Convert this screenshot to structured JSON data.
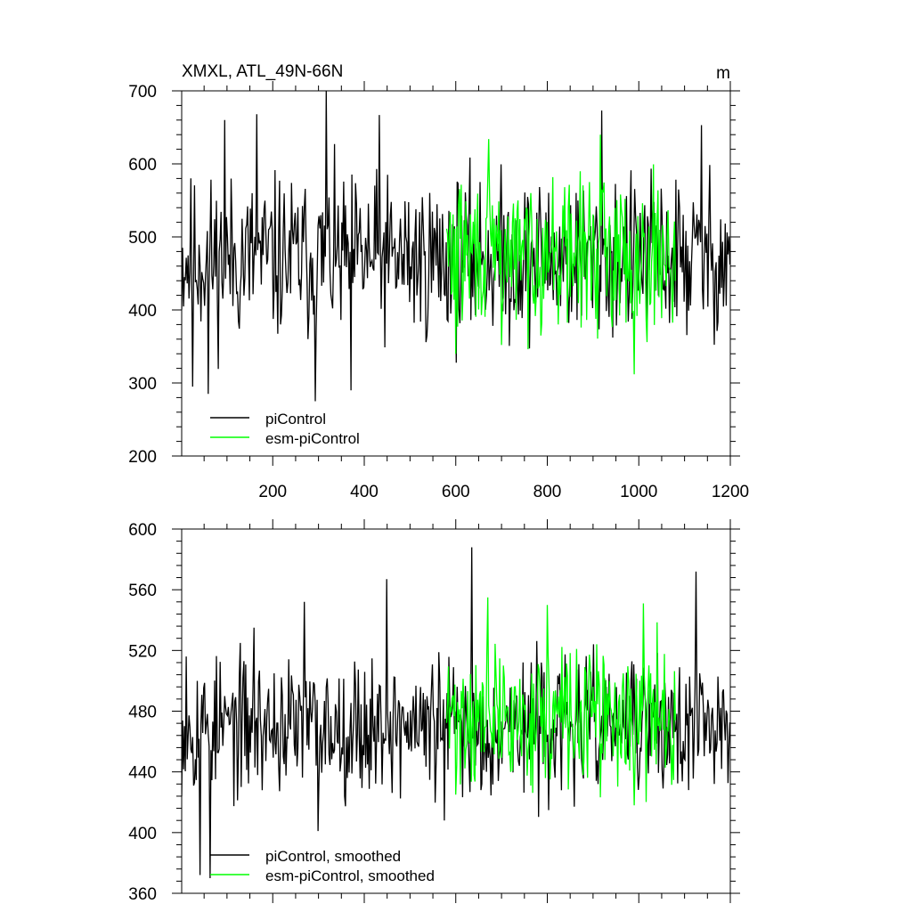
{
  "chart_data": [
    {
      "type": "line",
      "title": "XMXL, ATL_49N-66N",
      "units": "m",
      "xlim": [
        1,
        1200
      ],
      "ylim": [
        200,
        700
      ],
      "xticks": [
        200,
        400,
        600,
        800,
        1000,
        1200
      ],
      "yticks": [
        200,
        300,
        400,
        500,
        600,
        700
      ],
      "legend_position": "bottom-left",
      "series": [
        {
          "name": "piControl",
          "color": "#000000",
          "x_range": [
            1,
            1200
          ],
          "mean": 470,
          "noise": 55,
          "seed": 11,
          "peaks": [
            [
              95,
              660
            ],
            [
              165,
              668
            ],
            [
              318,
              700
            ],
            [
              294,
              275
            ],
            [
              372,
              290
            ],
            [
              434,
              667
            ],
            [
              920,
              673
            ],
            [
              1137,
              653
            ],
            [
              60,
              285
            ],
            [
              25,
              295
            ]
          ]
        },
        {
          "name": "esm-piControl",
          "color": "#00ff00",
          "x_range": [
            580,
            1080
          ],
          "mean": 478,
          "noise": 50,
          "seed": 29,
          "peaks": [
            [
              672,
              634
            ],
            [
              916,
              640
            ],
            [
              990,
              312
            ],
            [
              700,
              352
            ],
            [
              600,
              340
            ]
          ]
        }
      ]
    },
    {
      "type": "line",
      "title": "",
      "xlim": [
        1,
        1200
      ],
      "ylim": [
        360,
        600
      ],
      "xticks": [
        200,
        400,
        600,
        800,
        1000,
        1200
      ],
      "yticks": [
        360,
        400,
        440,
        480,
        520,
        560,
        600
      ],
      "legend_position": "bottom-left",
      "series": [
        {
          "name": "piControl, smoothed",
          "color": "#000000",
          "x_range": [
            1,
            1200
          ],
          "mean": 470,
          "noise": 22,
          "seed": 53,
          "peaks": [
            [
              12,
              516
            ],
            [
              42,
              372
            ],
            [
              64,
              370
            ],
            [
              160,
              535
            ],
            [
              270,
              552
            ],
            [
              300,
              401
            ],
            [
              450,
              567
            ],
            [
              575,
              408
            ],
            [
              635,
              588
            ],
            [
              655,
              428
            ],
            [
              1125,
              572
            ],
            [
              1110,
              428
            ],
            [
              1165,
              432
            ]
          ]
        },
        {
          "name": "esm-piControl, smoothed",
          "color": "#00ff00",
          "x_range": [
            580,
            1080
          ],
          "mean": 476,
          "noise": 22,
          "seed": 71,
          "peaks": [
            [
              670,
              555
            ],
            [
              800,
              550
            ],
            [
              1010,
              551
            ],
            [
              990,
              418
            ],
            [
              600,
              425
            ],
            [
              720,
              440
            ]
          ]
        }
      ]
    }
  ]
}
